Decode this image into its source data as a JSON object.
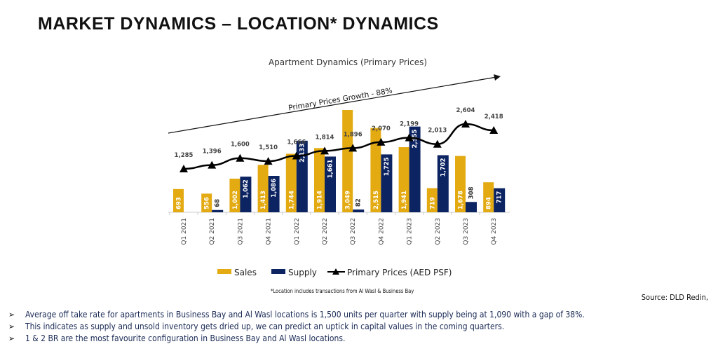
{
  "page_title": "MARKET DYNAMICS – LOCATION* DYNAMICS",
  "footnote": "*Location includes transactions from Al Wasl & Business Bay",
  "source": "Source: DLD Redin,",
  "bullets": [
    "Average off take rate for apartments in Business Bay and Al Wasl locations is 1,500 units per quarter with supply being at 1,090 with a gap of 38%.",
    "This indicates as supply and unsold inventory gets dried up, we can predict an uptick in capital values in the coming quarters.",
    "1 & 2 BR are the most favourite configuration in Business Bay and Al Wasl locations."
  ],
  "chart_data": {
    "type": "bar+line",
    "title": "Apartment Dynamics (Primary Prices)",
    "annotation": "Primary Prices Growth - 88%",
    "categories": [
      "Q1 2021",
      "Q2 2021",
      "Q3 2021",
      "Q4 2021",
      "Q1 2022",
      "Q2 2022",
      "Q3 2022",
      "Q4 2022",
      "Q1 2023",
      "Q2 2023",
      "Q3 2023",
      "Q4 2023"
    ],
    "series": [
      {
        "name": "Sales",
        "type": "bar",
        "color": "#E3AA12",
        "values": [
          693,
          556,
          1002,
          1413,
          1744,
          1914,
          3049,
          2515,
          1941,
          719,
          1678,
          894
        ],
        "labels": [
          "693",
          "556",
          "1,002",
          "1,413",
          "1,744",
          "1,914",
          "3,049",
          "2,515",
          "1,941",
          "719",
          "1,678",
          "894"
        ]
      },
      {
        "name": "Supply",
        "type": "bar",
        "color": "#0D2463",
        "values": [
          null,
          68,
          1062,
          1086,
          2133,
          1661,
          82,
          1725,
          2555,
          1702,
          308,
          717
        ],
        "labels": [
          "",
          "68",
          "1,062",
          "1,086",
          "2,133",
          "1,661",
          "82",
          "1,725",
          "2,555",
          "1,702",
          "308",
          "717"
        ]
      },
      {
        "name": "Primary Prices (AED PSF)",
        "type": "line",
        "color": "#000000",
        "values": [
          1285,
          1396,
          1600,
          1510,
          1666,
          1814,
          1896,
          2070,
          2199,
          2013,
          2604,
          2418
        ],
        "labels": [
          "1,285",
          "1,396",
          "1,600",
          "1,510",
          "1,666",
          "1,814",
          "1,896",
          "2,070",
          "2,199",
          "2,013",
          "2,604",
          "2,418"
        ]
      }
    ],
    "legend": "bottom",
    "grid": false
  }
}
